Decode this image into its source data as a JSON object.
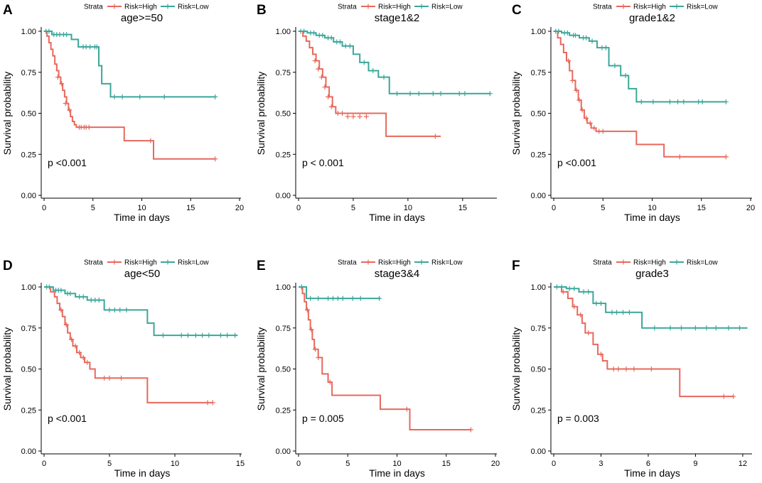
{
  "figure": {
    "colors": {
      "high": "#E8685C",
      "low": "#3AA79A",
      "axis": "#000000"
    },
    "legend": {
      "title": "Strata",
      "high": "Risk=High",
      "low": "Risk=Low"
    },
    "xlabel": "Time in days",
    "ylabel": "Survival probability"
  },
  "chart_data": [
    {
      "type": "line",
      "letter": "A",
      "title": "age>=50",
      "pvalue": "p <0.001",
      "xlim": [
        0,
        20
      ],
      "xticks": [
        0,
        5,
        10,
        15,
        20
      ],
      "ylim": [
        0,
        1
      ],
      "yticks": [
        0.0,
        0.25,
        0.5,
        0.75,
        1.0
      ],
      "ytick_labels": [
        "0.00",
        "0.25",
        "0.50",
        "0.75",
        "1.00"
      ],
      "series": [
        {
          "name": "Risk=High",
          "key": "high",
          "x": [
            0,
            0.3,
            0.5,
            0.7,
            0.9,
            1.1,
            1.3,
            1.5,
            1.7,
            1.9,
            2.1,
            2.3,
            2.5,
            2.7,
            2.9,
            3.1,
            3.3,
            8.2,
            11.2,
            17.5
          ],
          "y": [
            1.0,
            0.97,
            0.93,
            0.89,
            0.85,
            0.8,
            0.76,
            0.72,
            0.68,
            0.64,
            0.6,
            0.56,
            0.52,
            0.48,
            0.45,
            0.43,
            0.415,
            0.333,
            0.222,
            0.222
          ],
          "censor_x": [
            1.4,
            1.8,
            2.2,
            2.6,
            3.6,
            3.8,
            4.1,
            4.3,
            4.6,
            10.9,
            17.5
          ],
          "censor_y": [
            0.72,
            0.68,
            0.56,
            0.52,
            0.415,
            0.415,
            0.415,
            0.415,
            0.415,
            0.333,
            0.222
          ]
        },
        {
          "name": "Risk=Low",
          "key": "low",
          "x": [
            0,
            0.8,
            2.8,
            3.5,
            5.6,
            5.9,
            6.8,
            17.5
          ],
          "y": [
            1.0,
            0.98,
            0.95,
            0.905,
            0.79,
            0.68,
            0.6,
            0.6
          ],
          "censor_x": [
            0.2,
            0.5,
            1.0,
            1.3,
            1.6,
            2.0,
            2.3,
            4.0,
            4.3,
            4.7,
            5.2,
            5.4,
            7.2,
            8.0,
            9.8,
            12.3,
            17.5
          ],
          "censor_y": [
            1.0,
            1.0,
            0.98,
            0.98,
            0.98,
            0.98,
            0.98,
            0.905,
            0.905,
            0.905,
            0.905,
            0.905,
            0.6,
            0.6,
            0.6,
            0.6,
            0.6
          ]
        }
      ]
    },
    {
      "type": "line",
      "letter": "B",
      "title": "stage1&2",
      "pvalue": "p < 0.001",
      "xlim": [
        0,
        18
      ],
      "xticks": [
        0,
        5,
        10,
        15
      ],
      "ylim": [
        0,
        1
      ],
      "yticks": [
        0.0,
        0.25,
        0.5,
        0.75,
        1.0
      ],
      "ytick_labels": [
        "0.00",
        "0.25",
        "0.50",
        "0.75",
        "1.00"
      ],
      "series": [
        {
          "name": "Risk=High",
          "key": "high",
          "x": [
            0,
            0.4,
            0.7,
            1.0,
            1.3,
            1.6,
            1.9,
            2.2,
            2.5,
            2.8,
            3.1,
            3.4,
            8.0,
            13.0
          ],
          "y": [
            1.0,
            0.97,
            0.94,
            0.9,
            0.86,
            0.82,
            0.77,
            0.72,
            0.66,
            0.6,
            0.54,
            0.5,
            0.36,
            0.36
          ],
          "censor_x": [
            1.5,
            1.8,
            2.1,
            2.4,
            2.7,
            3.0,
            3.6,
            4.0,
            4.5,
            5.0,
            5.6,
            6.2,
            12.5
          ],
          "censor_y": [
            0.82,
            0.77,
            0.72,
            0.66,
            0.6,
            0.54,
            0.5,
            0.5,
            0.48,
            0.48,
            0.48,
            0.48,
            0.36
          ]
        },
        {
          "name": "Risk=Low",
          "key": "low",
          "x": [
            0,
            0.8,
            1.6,
            2.4,
            3.2,
            4.0,
            5.0,
            5.6,
            6.4,
            7.3,
            8.3,
            17.5
          ],
          "y": [
            1.0,
            0.99,
            0.975,
            0.96,
            0.935,
            0.91,
            0.86,
            0.81,
            0.76,
            0.72,
            0.62,
            0.62
          ],
          "censor_x": [
            0.2,
            0.5,
            1.1,
            1.4,
            1.9,
            2.2,
            2.7,
            3.0,
            3.5,
            3.8,
            4.3,
            4.7,
            6.0,
            6.8,
            7.8,
            9.0,
            10.2,
            11.0,
            12.3,
            13.0,
            14.7,
            15.2,
            17.5
          ],
          "censor_y": [
            1.0,
            1.0,
            0.99,
            0.99,
            0.975,
            0.975,
            0.96,
            0.96,
            0.935,
            0.935,
            0.91,
            0.91,
            0.81,
            0.76,
            0.72,
            0.62,
            0.62,
            0.62,
            0.62,
            0.62,
            0.62,
            0.62,
            0.62
          ]
        }
      ]
    },
    {
      "type": "line",
      "letter": "C",
      "title": "grade1&2",
      "pvalue": "p <0.001",
      "xlim": [
        0,
        20
      ],
      "xticks": [
        0,
        5,
        10,
        15,
        20
      ],
      "ylim": [
        0,
        1
      ],
      "yticks": [
        0.0,
        0.25,
        0.5,
        0.75,
        1.0
      ],
      "ytick_labels": [
        "0.00",
        "0.25",
        "0.50",
        "0.75",
        "1.00"
      ],
      "series": [
        {
          "name": "Risk=High",
          "key": "high",
          "x": [
            0,
            0.4,
            0.7,
            1.0,
            1.3,
            1.6,
            1.9,
            2.2,
            2.5,
            2.8,
            3.1,
            3.4,
            3.8,
            4.3,
            8.4,
            11.2,
            17.5
          ],
          "y": [
            1.0,
            0.96,
            0.92,
            0.87,
            0.82,
            0.76,
            0.7,
            0.64,
            0.58,
            0.52,
            0.47,
            0.44,
            0.41,
            0.39,
            0.31,
            0.235,
            0.235
          ],
          "censor_x": [
            1.5,
            1.9,
            2.3,
            2.6,
            2.9,
            3.3,
            3.7,
            4.1,
            4.6,
            5.0,
            12.8,
            17.5
          ],
          "censor_y": [
            0.82,
            0.7,
            0.64,
            0.58,
            0.52,
            0.47,
            0.44,
            0.41,
            0.39,
            0.39,
            0.235,
            0.235
          ]
        },
        {
          "name": "Risk=Low",
          "key": "low",
          "x": [
            0,
            0.8,
            1.6,
            2.6,
            3.6,
            4.4,
            5.6,
            6.8,
            7.6,
            8.4,
            17.5
          ],
          "y": [
            1.0,
            0.99,
            0.975,
            0.96,
            0.94,
            0.9,
            0.79,
            0.73,
            0.65,
            0.57,
            0.57
          ],
          "censor_x": [
            0.2,
            0.5,
            1.1,
            1.4,
            2.0,
            2.2,
            3.0,
            3.3,
            3.9,
            4.9,
            5.3,
            6.2,
            7.3,
            8.9,
            10.1,
            11.8,
            12.6,
            13.2,
            14.7,
            15.1,
            17.5
          ],
          "censor_y": [
            1.0,
            1.0,
            0.99,
            0.99,
            0.975,
            0.975,
            0.96,
            0.96,
            0.94,
            0.9,
            0.9,
            0.79,
            0.73,
            0.57,
            0.57,
            0.57,
            0.57,
            0.57,
            0.57,
            0.57,
            0.57
          ]
        }
      ]
    },
    {
      "type": "line",
      "letter": "D",
      "title": "age<50",
      "pvalue": "p <0.001",
      "xlim": [
        0,
        15
      ],
      "xticks": [
        0,
        5,
        10,
        15
      ],
      "ylim": [
        0,
        1
      ],
      "yticks": [
        0.0,
        0.25,
        0.5,
        0.75,
        1.0
      ],
      "ytick_labels": [
        "0.00",
        "0.25",
        "0.50",
        "0.75",
        "1.00"
      ],
      "series": [
        {
          "name": "Risk=High",
          "key": "high",
          "x": [
            0,
            0.5,
            0.8,
            1.0,
            1.2,
            1.4,
            1.6,
            1.8,
            2.0,
            2.2,
            2.5,
            2.8,
            3.1,
            3.5,
            3.9,
            7.9,
            12.9
          ],
          "y": [
            1.0,
            0.97,
            0.94,
            0.9,
            0.86,
            0.82,
            0.77,
            0.72,
            0.68,
            0.64,
            0.6,
            0.57,
            0.54,
            0.5,
            0.445,
            0.295,
            0.295
          ],
          "censor_x": [
            1.3,
            1.7,
            2.1,
            2.4,
            2.7,
            3.0,
            3.3,
            4.6,
            5.0,
            5.9,
            12.5,
            12.9
          ],
          "censor_y": [
            0.86,
            0.77,
            0.68,
            0.64,
            0.6,
            0.57,
            0.54,
            0.445,
            0.445,
            0.445,
            0.295,
            0.295
          ]
        },
        {
          "name": "Risk=Low",
          "key": "low",
          "x": [
            0,
            0.7,
            1.6,
            2.4,
            3.3,
            4.6,
            7.9,
            8.4,
            14.8
          ],
          "y": [
            1.0,
            0.98,
            0.96,
            0.94,
            0.92,
            0.86,
            0.78,
            0.705,
            0.705
          ],
          "censor_x": [
            0.2,
            0.4,
            0.9,
            1.1,
            1.3,
            1.8,
            2.0,
            2.7,
            3.0,
            3.6,
            3.9,
            4.2,
            5.0,
            5.4,
            5.8,
            6.3,
            9.1,
            10.5,
            11.0,
            11.6,
            12.1,
            12.6,
            13.5,
            14.0,
            14.6
          ],
          "censor_y": [
            1.0,
            1.0,
            0.98,
            0.98,
            0.98,
            0.96,
            0.96,
            0.94,
            0.94,
            0.92,
            0.92,
            0.92,
            0.86,
            0.86,
            0.86,
            0.86,
            0.705,
            0.705,
            0.705,
            0.705,
            0.705,
            0.705,
            0.705,
            0.705,
            0.705
          ]
        }
      ]
    },
    {
      "type": "line",
      "letter": "E",
      "title": "stage3&4",
      "pvalue": "p = 0.005",
      "xlim": [
        0,
        20
      ],
      "xticks": [
        0,
        5,
        10,
        15,
        20
      ],
      "ylim": [
        0,
        1
      ],
      "yticks": [
        0.0,
        0.25,
        0.5,
        0.75,
        1.0
      ],
      "ytick_labels": [
        "0.00",
        "0.25",
        "0.50",
        "0.75",
        "1.00"
      ],
      "series": [
        {
          "name": "Risk=High",
          "key": "high",
          "x": [
            0,
            0.4,
            0.6,
            0.8,
            1.0,
            1.2,
            1.4,
            1.6,
            2.0,
            2.4,
            3.0,
            3.4,
            8.3,
            11.3,
            17.5
          ],
          "y": [
            1.0,
            0.96,
            0.91,
            0.86,
            0.8,
            0.74,
            0.68,
            0.62,
            0.57,
            0.47,
            0.42,
            0.34,
            0.255,
            0.13,
            0.13
          ],
          "censor_x": [
            0.3,
            0.9,
            1.3,
            1.7,
            2.0,
            3.2,
            11.0,
            17.5
          ],
          "censor_y": [
            1.0,
            0.86,
            0.74,
            0.62,
            0.57,
            0.42,
            0.255,
            0.13
          ]
        },
        {
          "name": "Risk=Low",
          "key": "low",
          "x": [
            0,
            0.8,
            8.3
          ],
          "y": [
            1.0,
            0.93,
            0.93
          ],
          "censor_x": [
            0.3,
            1.2,
            2.0,
            3.0,
            3.5,
            4.0,
            4.5,
            5.5,
            6.3,
            8.2
          ],
          "censor_y": [
            1.0,
            0.93,
            0.93,
            0.93,
            0.93,
            0.93,
            0.93,
            0.93,
            0.93,
            0.93
          ]
        }
      ]
    },
    {
      "type": "line",
      "letter": "F",
      "title": "grade3",
      "pvalue": "p = 0.003",
      "xlim": [
        0,
        12.5
      ],
      "xticks": [
        0,
        3,
        6,
        9,
        12
      ],
      "ylim": [
        0,
        1
      ],
      "yticks": [
        0.0,
        0.25,
        0.5,
        0.75,
        1.0
      ],
      "ytick_labels": [
        "0.00",
        "0.25",
        "0.50",
        "0.75",
        "1.00"
      ],
      "series": [
        {
          "name": "Risk=High",
          "key": "high",
          "x": [
            0,
            0.5,
            0.9,
            1.2,
            1.5,
            1.8,
            2.0,
            2.5,
            2.8,
            3.1,
            3.4,
            8.0,
            11.4
          ],
          "y": [
            1.0,
            0.97,
            0.93,
            0.88,
            0.83,
            0.78,
            0.72,
            0.65,
            0.59,
            0.55,
            0.5,
            0.333,
            0.333
          ],
          "censor_x": [
            0.6,
            1.3,
            1.7,
            2.2,
            3.0,
            3.8,
            4.1,
            4.6,
            5.1,
            6.2,
            10.8,
            11.4
          ],
          "censor_y": [
            0.97,
            0.88,
            0.83,
            0.72,
            0.59,
            0.5,
            0.5,
            0.5,
            0.5,
            0.5,
            0.333,
            0.333
          ]
        },
        {
          "name": "Risk=Low",
          "key": "low",
          "x": [
            0,
            0.8,
            1.6,
            2.5,
            3.3,
            5.6,
            12.3
          ],
          "y": [
            1.0,
            0.99,
            0.97,
            0.9,
            0.845,
            0.75,
            0.75
          ],
          "censor_x": [
            0.2,
            0.5,
            1.0,
            1.3,
            1.9,
            2.2,
            2.7,
            3.0,
            3.7,
            4.0,
            4.4,
            4.8,
            6.4,
            7.4,
            8.1,
            9.0,
            9.7,
            10.3,
            11.1,
            11.8
          ],
          "censor_y": [
            1.0,
            1.0,
            0.99,
            0.99,
            0.97,
            0.97,
            0.9,
            0.9,
            0.845,
            0.845,
            0.845,
            0.845,
            0.75,
            0.75,
            0.75,
            0.75,
            0.75,
            0.75,
            0.75,
            0.75
          ]
        }
      ]
    }
  ]
}
